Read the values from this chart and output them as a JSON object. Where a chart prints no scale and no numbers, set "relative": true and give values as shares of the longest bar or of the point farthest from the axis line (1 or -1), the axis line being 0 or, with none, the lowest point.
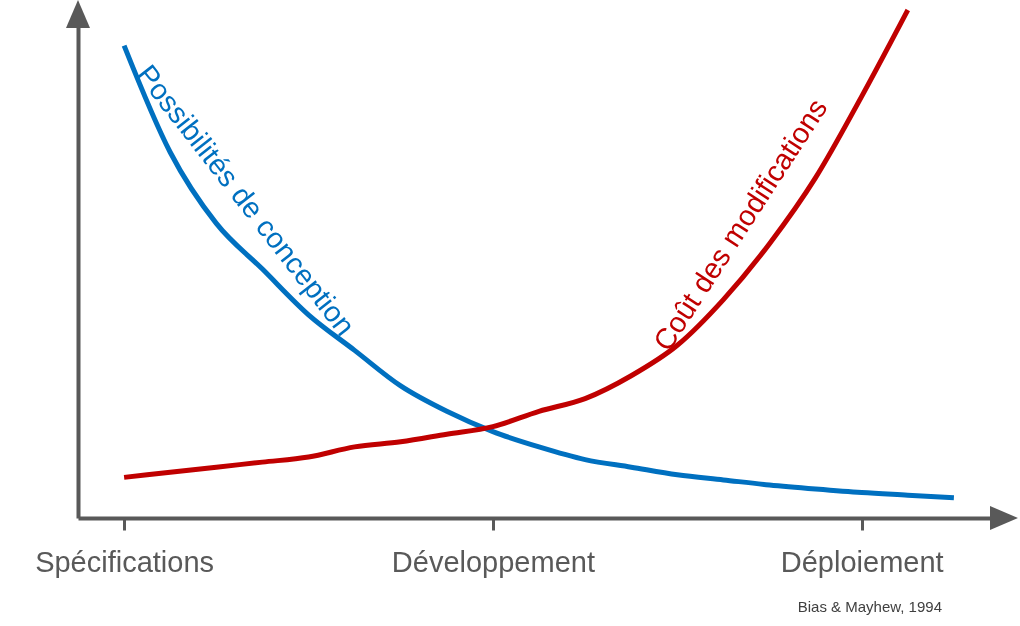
{
  "chart_data": {
    "type": "line",
    "relative": true,
    "categories": [
      "Spécifications",
      null,
      null,
      null,
      null,
      null,
      null,
      null,
      "Développement",
      null,
      null,
      null,
      null,
      null,
      null,
      null,
      "Déploiement",
      null,
      null
    ],
    "grid": false,
    "marker": "none",
    "line_style": "solid",
    "annotations": [
      "Bias & Mayhew, 1994"
    ],
    "series": [
      {
        "name": "Possibilités de conception",
        "color": "#0070c0",
        "values": [
          0.93,
          0.72,
          0.58,
          0.49,
          0.4,
          0.33,
          0.26,
          0.21,
          0.17,
          0.14,
          0.115,
          0.1,
          0.085,
          0.075,
          0.065,
          0.057,
          0.05,
          0.045,
          0.04
        ]
      },
      {
        "name": "Coût des modifications",
        "color": "#c00000",
        "values": [
          0.08,
          0.09,
          0.1,
          0.11,
          0.12,
          0.14,
          0.15,
          0.165,
          0.18,
          0.21,
          0.235,
          0.28,
          0.34,
          0.43,
          0.54,
          0.67,
          0.83,
          1.0,
          null
        ]
      }
    ]
  }
}
